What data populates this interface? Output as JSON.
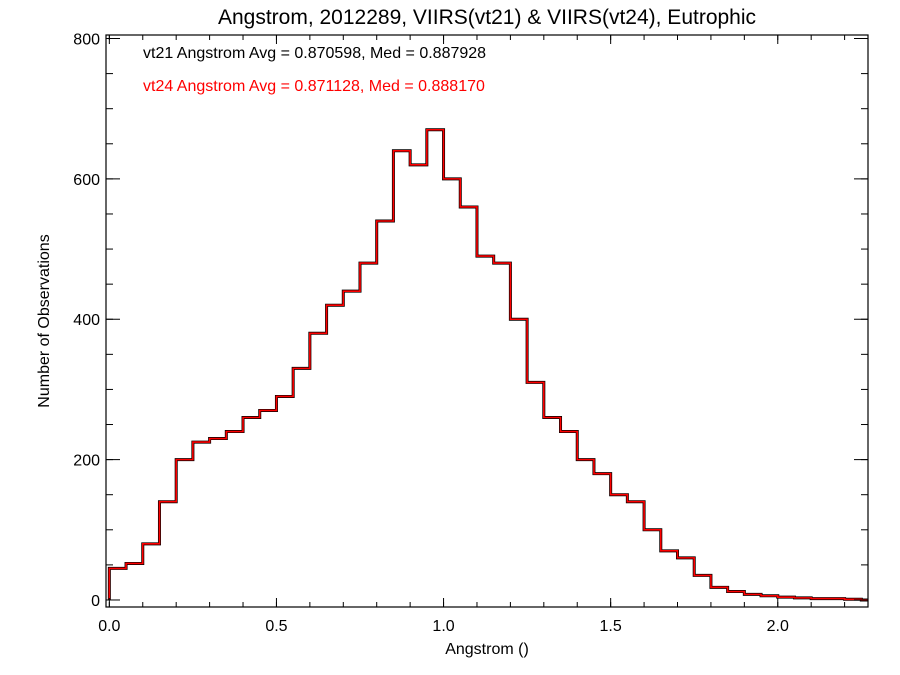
{
  "chart_data": {
    "type": "line",
    "step": true,
    "title": "Angstrom, 2012289, VIIRS(vt21) & VIIRS(vt24), Eutrophic",
    "xlabel": "Angstrom ()",
    "ylabel": "Number of Observations",
    "xlim": [
      -0.01,
      2.27
    ],
    "ylim": [
      -10,
      805
    ],
    "x_ticks": [
      0.0,
      0.5,
      1.0,
      1.5,
      2.0
    ],
    "x_tick_labels": [
      "0.0",
      "0.5",
      "1.0",
      "1.5",
      "2.0"
    ],
    "y_ticks": [
      0,
      200,
      400,
      600,
      800
    ],
    "y_tick_labels": [
      "0",
      "200",
      "400",
      "600",
      "800"
    ],
    "annotations": [
      {
        "text": "vt21 Angstrom Avg = 0.870598, Med = 0.887928",
        "color": "#000000"
      },
      {
        "text": "vt24 Angstrom Avg = 0.871128, Med = 0.888170",
        "color": "#ff0000"
      }
    ],
    "series": [
      {
        "color": "#000000",
        "x": [
          0.0,
          0.05,
          0.1,
          0.15,
          0.2,
          0.25,
          0.3,
          0.35,
          0.4,
          0.45,
          0.5,
          0.55,
          0.6,
          0.65,
          0.7,
          0.75,
          0.8,
          0.85,
          0.9,
          0.95,
          1.0,
          1.05,
          1.1,
          1.15,
          1.2,
          1.25,
          1.3,
          1.35,
          1.4,
          1.45,
          1.5,
          1.55,
          1.6,
          1.65,
          1.7,
          1.75,
          1.8,
          1.85,
          1.9,
          1.95,
          2.0,
          2.05,
          2.1,
          2.15,
          2.2,
          2.25
        ],
        "y": [
          45,
          52,
          80,
          140,
          200,
          225,
          230,
          240,
          260,
          270,
          290,
          330,
          380,
          420,
          440,
          480,
          540,
          640,
          620,
          670,
          600,
          560,
          490,
          480,
          400,
          310,
          260,
          240,
          200,
          180,
          150,
          140,
          100,
          70,
          60,
          35,
          18,
          12,
          8,
          6,
          4,
          3,
          2,
          2,
          1,
          0
        ]
      },
      {
        "color": "#ff0000",
        "x": [
          0.0,
          0.05,
          0.1,
          0.15,
          0.2,
          0.25,
          0.3,
          0.35,
          0.4,
          0.45,
          0.5,
          0.55,
          0.6,
          0.65,
          0.7,
          0.75,
          0.8,
          0.85,
          0.9,
          0.95,
          1.0,
          1.05,
          1.1,
          1.15,
          1.2,
          1.25,
          1.3,
          1.35,
          1.4,
          1.45,
          1.5,
          1.55,
          1.6,
          1.65,
          1.7,
          1.75,
          1.8,
          1.85,
          1.9,
          1.95,
          2.0,
          2.05,
          2.1,
          2.15,
          2.2,
          2.25
        ],
        "y": [
          45,
          52,
          80,
          140,
          200,
          225,
          230,
          240,
          260,
          270,
          290,
          330,
          380,
          420,
          440,
          480,
          540,
          640,
          620,
          670,
          600,
          560,
          490,
          480,
          400,
          310,
          260,
          240,
          200,
          180,
          150,
          140,
          100,
          70,
          60,
          35,
          18,
          12,
          8,
          6,
          4,
          3,
          2,
          2,
          1,
          0
        ]
      }
    ]
  }
}
